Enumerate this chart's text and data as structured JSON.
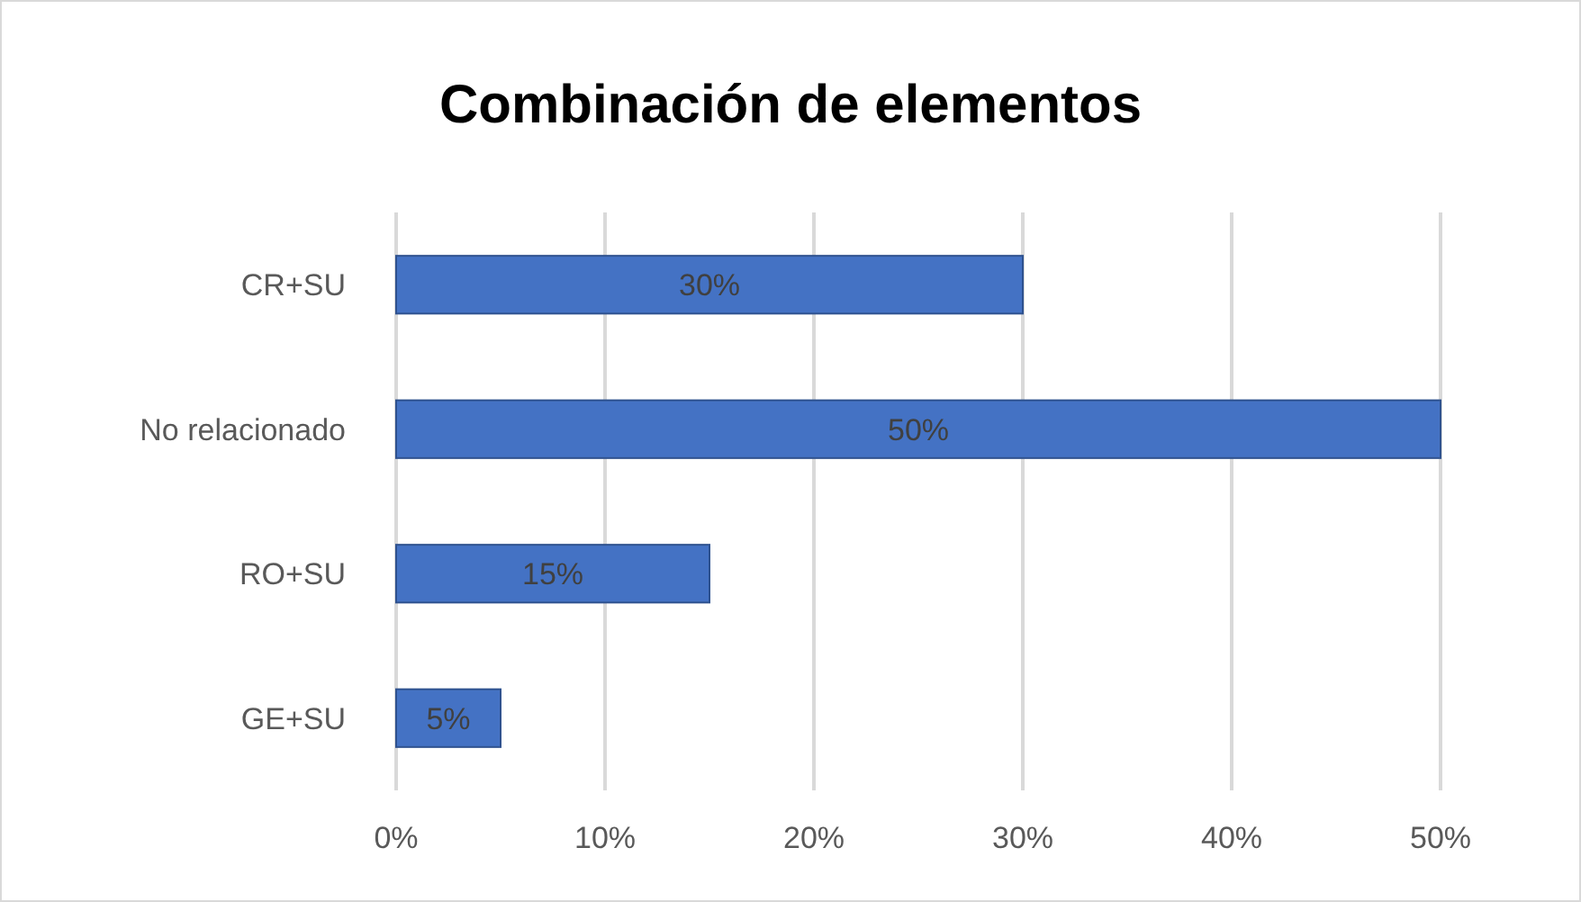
{
  "chart_data": {
    "type": "bar",
    "orientation": "horizontal",
    "title": "Combinación de elementos",
    "categories": [
      "CR+SU",
      "No relacionado",
      "RO+SU",
      "GE+SU"
    ],
    "values": [
      30,
      50,
      15,
      5
    ],
    "value_labels": [
      "30%",
      "50%",
      "15%",
      "5%"
    ],
    "color": "#4472c4",
    "xlim": [
      0,
      50
    ],
    "xticks": [
      {
        "value": 0,
        "label": "0%"
      },
      {
        "value": 10,
        "label": "10%"
      },
      {
        "value": 20,
        "label": "20%"
      },
      {
        "value": 30,
        "label": "30%"
      },
      {
        "value": 40,
        "label": "40%"
      },
      {
        "value": 50,
        "label": "50%"
      }
    ],
    "grid": "x"
  }
}
